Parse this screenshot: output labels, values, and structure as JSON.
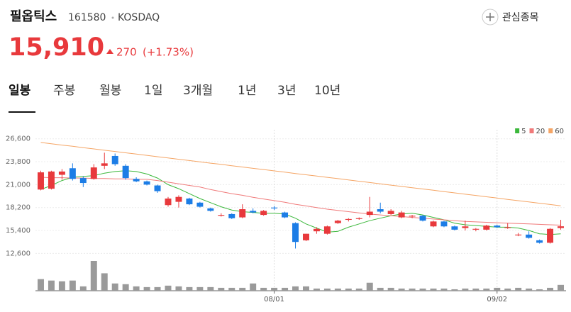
{
  "header": {
    "name": "필옵틱스",
    "code": "161580",
    "market": "KOSDAQ",
    "price": "15,910",
    "change": "270",
    "change_pct": "(+1.73%)",
    "watch_button": "관심종목"
  },
  "tabs": [
    "일봉",
    "주봉",
    "월봉",
    "1일",
    "3개월",
    "1년",
    "3년",
    "10년"
  ],
  "chart_data": {
    "type": "candlestick",
    "categories": [
      null,
      null,
      null,
      null,
      null,
      null,
      null,
      null,
      null,
      null,
      null,
      null,
      null,
      null,
      null,
      null,
      null,
      null,
      null,
      null,
      null,
      null,
      "08/01",
      null,
      null,
      null,
      null,
      null,
      null,
      null,
      null,
      null,
      null,
      null,
      null,
      null,
      null,
      null,
      null,
      null,
      null,
      null,
      null,
      "09/02",
      null,
      null,
      null,
      null,
      null,
      null
    ],
    "open": [
      20400,
      20500,
      22200,
      23000,
      21800,
      21700,
      23300,
      24500,
      23300,
      21700,
      21400,
      20900,
      18500,
      18900,
      19300,
      18800,
      18100,
      17200,
      17400,
      17000,
      17800,
      17300,
      18200,
      17600,
      16300,
      14200,
      15300,
      15000,
      16300,
      16700,
      16800,
      17300,
      18000,
      17400,
      17000,
      17100,
      17200,
      15900,
      16500,
      15900,
      15700,
      15500,
      15500,
      16000,
      15700,
      14800,
      14900,
      14200,
      13900,
      15700
    ],
    "high": [
      22700,
      22700,
      22900,
      23600,
      22000,
      23500,
      24900,
      24800,
      23500,
      21900,
      21500,
      21000,
      19500,
      19700,
      19400,
      18900,
      18200,
      17500,
      17500,
      18600,
      18100,
      17900,
      18400,
      17700,
      16400,
      15000,
      15800,
      16000,
      16700,
      16900,
      17000,
      19500,
      18800,
      18000,
      17800,
      17300,
      17300,
      16600,
      16600,
      16000,
      16600,
      15700,
      16100,
      16100,
      16300,
      15100,
      15300,
      14300,
      15700,
      16700
    ],
    "low": [
      20300,
      20400,
      21600,
      21500,
      20700,
      21600,
      22900,
      23300,
      21600,
      21300,
      20900,
      20000,
      18300,
      18200,
      18500,
      18200,
      17700,
      17100,
      16800,
      16900,
      17500,
      17200,
      17900,
      16900,
      13200,
      14100,
      15000,
      14900,
      16200,
      16500,
      16700,
      17000,
      17500,
      17300,
      16900,
      16900,
      16500,
      15800,
      15800,
      15400,
      15400,
      15300,
      15400,
      15700,
      15600,
      14700,
      14400,
      13800,
      13800,
      15500
    ],
    "close": [
      22500,
      22600,
      22600,
      21700,
      21200,
      23100,
      23600,
      23500,
      21800,
      21400,
      21000,
      20200,
      19300,
      19500,
      18600,
      18300,
      17800,
      17300,
      16900,
      18000,
      17600,
      17800,
      18100,
      17000,
      14000,
      15000,
      15600,
      15900,
      16600,
      16800,
      16900,
      17700,
      17700,
      17800,
      17600,
      17200,
      16600,
      16500,
      15900,
      15500,
      15900,
      15600,
      16000,
      15800,
      15800,
      14900,
      14500,
      13900,
      15600,
      15910
    ],
    "up_color": "#e8393c",
    "down_color": "#1c7de6",
    "ylim": [
      12200,
      27700
    ],
    "yticks": [
      {
        "value": 26600,
        "label": "26,600"
      },
      {
        "value": 23800,
        "label": "23,800"
      },
      {
        "value": 21000,
        "label": "21,000"
      },
      {
        "value": 18200,
        "label": "18,200"
      },
      {
        "value": 15400,
        "label": "15,400"
      },
      {
        "value": 12600,
        "label": "12,600"
      }
    ],
    "grid": true,
    "moving_averages": [
      {
        "name": "5",
        "color": "#3cb83c",
        "values": [
          20400,
          20900,
          21500,
          21900,
          22000,
          22100,
          22400,
          22600,
          22700,
          22600,
          22300,
          21800,
          21000,
          20500,
          19900,
          19300,
          18800,
          18300,
          17900,
          17700,
          17600,
          17500,
          17500,
          17400,
          16900,
          16200,
          15700,
          15200,
          15300,
          15800,
          16200,
          16600,
          16900,
          17200,
          17400,
          17500,
          17300,
          17000,
          16700,
          16300,
          16100,
          16000,
          15900,
          15800,
          15800,
          15700,
          15400,
          15000,
          14900,
          15000
        ]
      },
      {
        "name": "20",
        "color": "#f07a7a",
        "values": [
          21900,
          21850,
          21850,
          21800,
          21800,
          21750,
          21750,
          21700,
          21700,
          21650,
          21650,
          21500,
          21300,
          21100,
          20900,
          20700,
          20400,
          20150,
          19900,
          19700,
          19450,
          19250,
          19050,
          18850,
          18600,
          18400,
          18200,
          18000,
          17850,
          17700,
          17550,
          17400,
          17300,
          17200,
          17100,
          17000,
          16900,
          16800,
          16700,
          16600,
          16500,
          16450,
          16400,
          16350,
          16300,
          16250,
          16200,
          16150,
          16100,
          16050
        ]
      },
      {
        "name": "60",
        "color": "#f5a565",
        "values": [
          26150,
          25990,
          25830,
          25680,
          25520,
          25360,
          25200,
          25050,
          24890,
          24730,
          24570,
          24410,
          24260,
          24100,
          23940,
          23780,
          23620,
          23470,
          23310,
          23150,
          22990,
          22840,
          22680,
          22520,
          22360,
          22200,
          22050,
          21890,
          21730,
          21570,
          21410,
          21260,
          21100,
          20940,
          20780,
          20620,
          20470,
          20310,
          20150,
          19990,
          19830,
          19680,
          19520,
          19360,
          19200,
          19040,
          18890,
          18730,
          18570,
          18410
        ]
      }
    ],
    "volume": {
      "color": "#9a9a9a",
      "values": [
        160,
        140,
        130,
        140,
        60,
        410,
        240,
        100,
        90,
        60,
        50,
        50,
        70,
        60,
        50,
        50,
        50,
        40,
        40,
        40,
        100,
        40,
        40,
        40,
        60,
        60,
        30,
        30,
        30,
        30,
        30,
        110,
        40,
        40,
        30,
        30,
        30,
        30,
        30,
        20,
        30,
        30,
        30,
        40,
        30,
        40,
        30,
        20,
        40,
        80
      ]
    }
  }
}
